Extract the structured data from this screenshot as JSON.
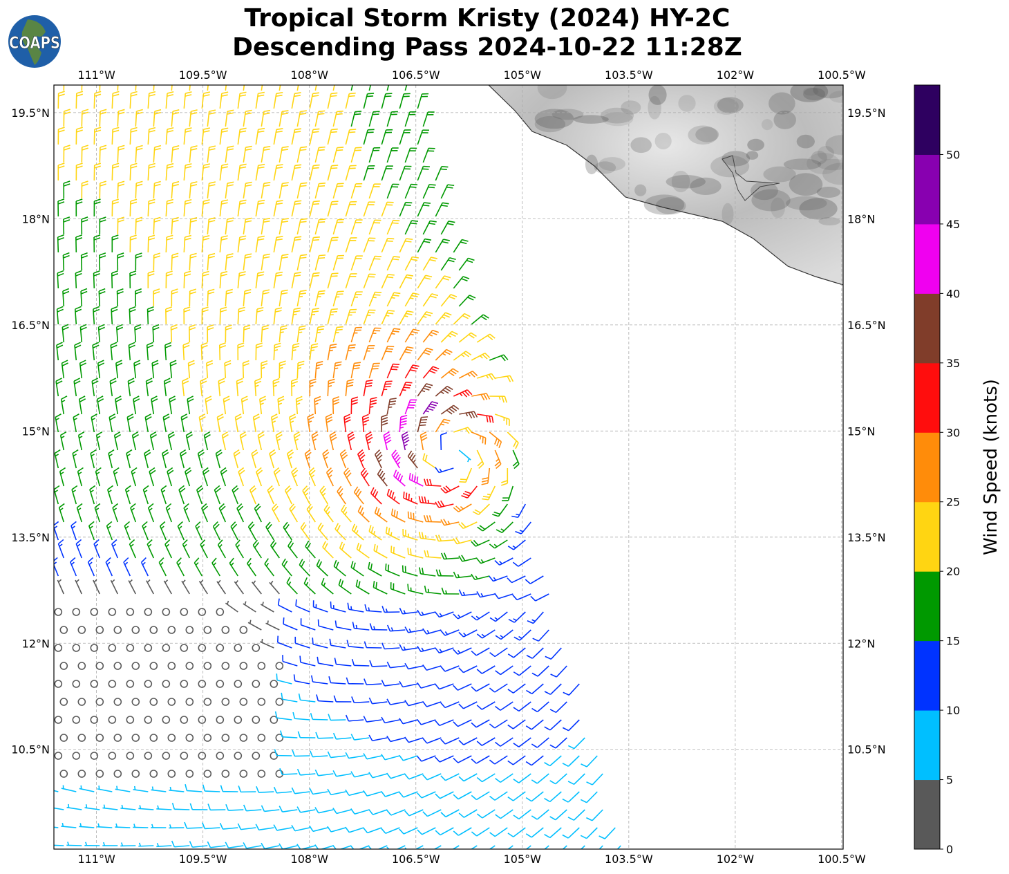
{
  "title_line1": "Tropical Storm Kristy (2024) HY-2C",
  "title_line2": "Descending Pass 2024-10-22 11:28Z",
  "logo_text": "COAPS",
  "chart_data": {
    "type": "wind-barb-map",
    "lon_range": [
      -111.6,
      -100.48
    ],
    "lat_range": [
      9.09,
      19.89
    ],
    "lon_ticks": [
      "111°W",
      "109.5°W",
      "108°W",
      "106.5°W",
      "105°W",
      "103.5°W",
      "102°W",
      "100.5°W"
    ],
    "lon_tick_values": [
      -111,
      -109.5,
      -108,
      -106.5,
      -105,
      -103.5,
      -102,
      -100.5
    ],
    "lat_ticks": [
      "19.5°N",
      "18°N",
      "16.5°N",
      "15°N",
      "13.5°N",
      "12°N",
      "10.5°N"
    ],
    "lat_tick_values": [
      19.5,
      18,
      16.5,
      15,
      13.5,
      12,
      10.5
    ],
    "grid": true,
    "storm_center": {
      "lon": -106.1,
      "lat": 14.7
    },
    "colorbar": {
      "label": "Wind Speed (knots)",
      "ticks": [
        "0",
        "5",
        "10",
        "15",
        "20",
        "25",
        "30",
        "35",
        "40",
        "45",
        "50"
      ],
      "bins": [
        0,
        5,
        10,
        15,
        20,
        25,
        30,
        35,
        40,
        45,
        50,
        55
      ],
      "colors": [
        "#595959",
        "#00bfff",
        "#0033ff",
        "#009900",
        "#ffd512",
        "#ff8c0a",
        "#ff0d0d",
        "#803d2a",
        "#f000f0",
        "#8800b0",
        "#2e0060"
      ]
    }
  }
}
